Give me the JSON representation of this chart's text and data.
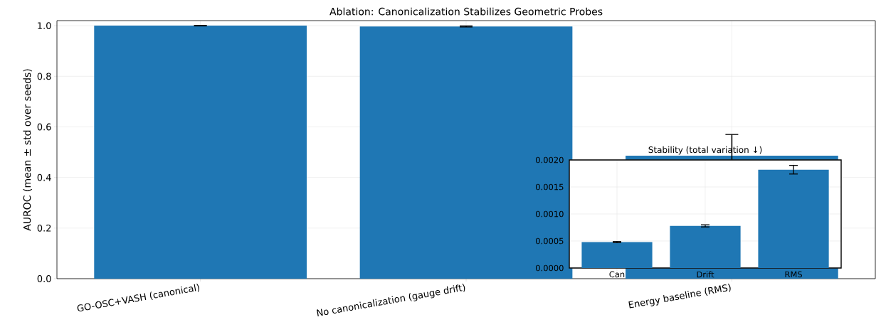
{
  "chart_data": [
    {
      "type": "bar",
      "title": "Ablation: Canonicalization Stabilizes Geometric Probes",
      "ylabel": "AUROC (mean ± std over seeds)",
      "categories": [
        "GO-OSC+VASH (canonical)",
        "No canonicalization (gauge drift)",
        "Energy baseline (RMS)"
      ],
      "values": [
        1.0,
        0.997,
        0.486
      ],
      "errors": [
        0.001,
        0.002,
        0.084
      ],
      "color": "#1f77b4",
      "ylim": [
        0,
        1.02
      ],
      "yticks": [
        {
          "value": 0,
          "label": "0.0"
        },
        {
          "value": 0.2,
          "label": "0.2"
        },
        {
          "value": 0.4,
          "label": "0.4"
        },
        {
          "value": 0.6,
          "label": "0.6"
        },
        {
          "value": 0.8,
          "label": "0.8"
        },
        {
          "value": 1.0,
          "label": "1.0"
        }
      ],
      "grid": true
    },
    {
      "type": "bar",
      "title": "Stability (total variation ↓)",
      "categories": [
        "Can",
        "Drift",
        "RMS"
      ],
      "values": [
        0.00048,
        0.00078,
        0.00182
      ],
      "errors": [
        1e-05,
        2e-05,
        8e-05
      ],
      "color": "#1f77b4",
      "ylim": [
        0,
        0.002
      ],
      "yticks": [
        {
          "value": 0,
          "label": "0.0000"
        },
        {
          "value": 0.0005,
          "label": "0.0005"
        },
        {
          "value": 0.001,
          "label": "0.0010"
        },
        {
          "value": 0.0015,
          "label": "0.0015"
        },
        {
          "value": 0.002,
          "label": "0.0020"
        }
      ],
      "grid": true
    }
  ]
}
